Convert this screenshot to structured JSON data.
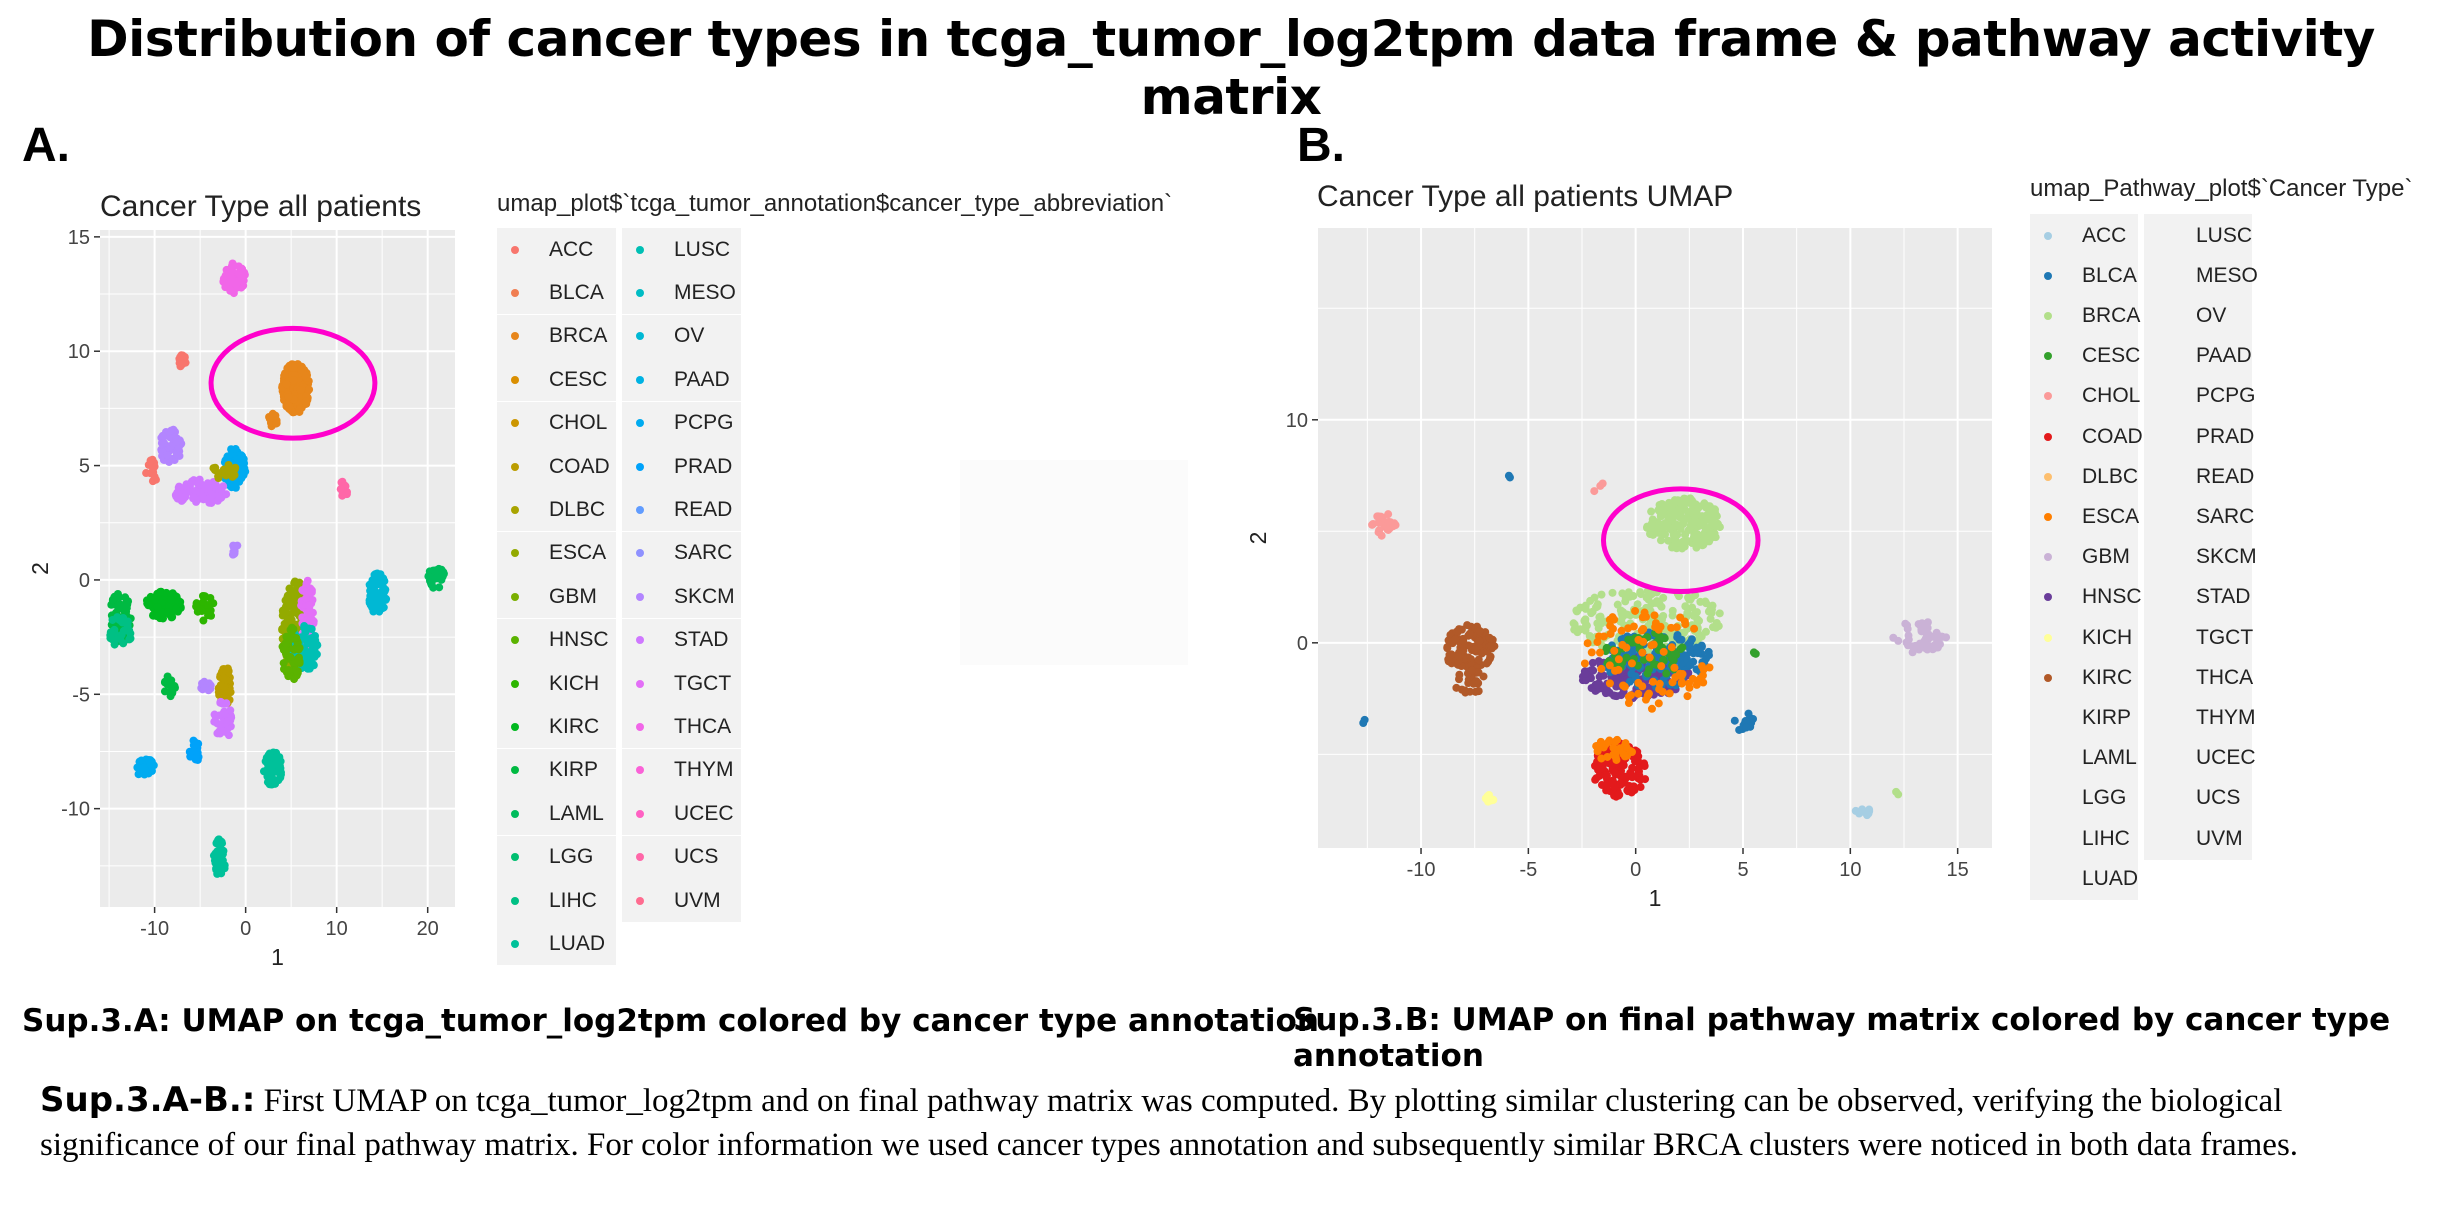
{
  "title": "Distribution of cancer types in tcga_tumor_log2tpm data frame  & pathway activity matrix",
  "panel_a": {
    "letter": "A.",
    "caption": "Sup.3.A: UMAP on tcga_tumor_log2tpm colored by cancer type annotation"
  },
  "panel_b": {
    "letter": "B.",
    "caption": "Sup.3.B: UMAP on final pathway matrix colored by cancer type annotation"
  },
  "footnote": {
    "label": "Sup.3.A-B.:",
    "text": " First UMAP on  tcga_tumor_log2tpm and on final pathway matrix was computed. By plotting similar clustering can be observed, verifying the biological significance of our final pathway matrix. For color information we used cancer types annotation and subsequently similar BRCA clusters were noticed in both data frames."
  },
  "colors": {
    "panel_background": "#ebebeb",
    "grid_line": "#ffffff",
    "highlight_circle": "#ff00cc"
  },
  "chart_data": [
    {
      "type": "scatter",
      "title": "Cancer Type all patients",
      "xlabel": "1",
      "ylabel": "2",
      "xlim": [
        -16,
        23
      ],
      "ylim": [
        -14.3,
        15.3
      ],
      "xticks": [
        -10,
        0,
        10,
        20
      ],
      "yticks": [
        -10,
        -5,
        0,
        5,
        10,
        15
      ],
      "grid": true,
      "legend_title": "umap_plot$`tcga_tumor_annotation$cancer_type_abbreviation`",
      "legend_position": "right",
      "legend_columns": 2,
      "categories": [
        "ACC",
        "BLCA",
        "BRCA",
        "CESC",
        "CHOL",
        "COAD",
        "DLBC",
        "ESCA",
        "GBM",
        "HNSC",
        "KICH",
        "KIRC",
        "KIRP",
        "LAML",
        "LGG",
        "LIHC",
        "LUAD",
        "LUSC",
        "MESO",
        "OV",
        "PAAD",
        "PCPG",
        "PRAD",
        "READ",
        "SARC",
        "SKCM",
        "STAD",
        "TGCT",
        "THCA",
        "THYM",
        "UCEC",
        "UCS",
        "UVM"
      ],
      "category_colors": [
        "#f8766d",
        "#f07e52",
        "#e7861b",
        "#da8f00",
        "#cc9600",
        "#bb9d00",
        "#a9a400",
        "#93aa00",
        "#7aaf00",
        "#5bb300",
        "#2db600",
        "#00b81f",
        "#00ba42",
        "#00bc5c",
        "#00be70",
        "#00c084",
        "#00c19a",
        "#00bfb4",
        "#00bcc4",
        "#00b8d4",
        "#00b2e3",
        "#00abf0",
        "#00a2fa",
        "#619cff",
        "#8f91ff",
        "#b385ff",
        "#cf78ff",
        "#e36ff7",
        "#f166e8",
        "#fa62d7",
        "#ff61c3",
        "#ff67a8",
        "#ff6c90"
      ],
      "clusters": [
        {
          "label": "BRCA",
          "x": [
            4,
            7
          ],
          "y": [
            7.3,
            9.5
          ],
          "n": 300,
          "color": "#e7861b"
        },
        {
          "label": "BRCA",
          "x": [
            2.5,
            3.5
          ],
          "y": [
            6.7,
            7.3
          ],
          "n": 15,
          "color": "#e7861b"
        },
        {
          "label": "ACC",
          "x": [
            -7.5,
            -6.5
          ],
          "y": [
            9.3,
            9.9
          ],
          "n": 12,
          "color": "#f8766d"
        },
        {
          "label": "TGCT",
          "x": [
            -2.5,
            0
          ],
          "y": [
            12.5,
            13.9
          ],
          "n": 60,
          "color": "#f166e8"
        },
        {
          "label": "PCPG",
          "x": [
            -2.5,
            0
          ],
          "y": [
            4,
            5.8
          ],
          "n": 80,
          "color": "#00abf0"
        },
        {
          "label": "SARC",
          "x": [
            -9.5,
            -7
          ],
          "y": [
            5,
            6.6
          ],
          "n": 60,
          "color": "#b385ff"
        },
        {
          "label": "SKCM",
          "x": [
            -8,
            -2
          ],
          "y": [
            3.3,
            4.4
          ],
          "n": 90,
          "color": "#cf78ff"
        },
        {
          "label": "DLBC",
          "x": [
            -4,
            -1
          ],
          "y": [
            4.3,
            5.2
          ],
          "n": 20,
          "color": "#a9a400"
        },
        {
          "label": "ACC",
          "x": [
            -11,
            -9.5
          ],
          "y": [
            4.3,
            5.3
          ],
          "n": 12,
          "color": "#f8766d"
        },
        {
          "label": "UCS",
          "x": [
            10.2,
            11.2
          ],
          "y": [
            3.5,
            4.3
          ],
          "n": 12,
          "color": "#ff67a8"
        },
        {
          "label": "SARC",
          "x": [
            -1.5,
            -0.8
          ],
          "y": [
            1,
            1.7
          ],
          "n": 10,
          "color": "#b385ff"
        },
        {
          "label": "KIRP",
          "x": [
            -15,
            -12.5
          ],
          "y": [
            -2.8,
            -0.5
          ],
          "n": 80,
          "color": "#00ba42"
        },
        {
          "label": "KIRC",
          "x": [
            -11,
            -7
          ],
          "y": [
            -1.7,
            -0.5
          ],
          "n": 110,
          "color": "#00b81f"
        },
        {
          "label": "KICH",
          "x": [
            -5.5,
            -3.5
          ],
          "y": [
            -1.8,
            -0.6
          ],
          "n": 25,
          "color": "#2db600"
        },
        {
          "label": "LIHC",
          "x": [
            -15,
            -12.5
          ],
          "y": [
            -3,
            -1.5
          ],
          "n": 30,
          "color": "#00c084"
        },
        {
          "label": "ESCA",
          "x": [
            4,
            7
          ],
          "y": [
            -4,
            0
          ],
          "n": 200,
          "color": "#93aa00"
        },
        {
          "label": "STAD",
          "x": [
            6,
            7.5
          ],
          "y": [
            -3,
            0
          ],
          "n": 60,
          "color": "#e36ff7"
        },
        {
          "label": "LUSC",
          "x": [
            5,
            8
          ],
          "y": [
            -4,
            -2
          ],
          "n": 90,
          "color": "#00bfb4"
        },
        {
          "label": "HNSC",
          "x": [
            4,
            6
          ],
          "y": [
            -4.5,
            -2
          ],
          "n": 50,
          "color": "#5bb300"
        },
        {
          "label": "OV",
          "x": [
            13.5,
            15.5
          ],
          "y": [
            -1.5,
            0.3
          ],
          "n": 80,
          "color": "#00b8d4"
        },
        {
          "label": "THYM",
          "x": [
            20,
            22
          ],
          "y": [
            -0.4,
            0.6
          ],
          "n": 40,
          "color": "#00bc5c"
        },
        {
          "label": "COAD",
          "x": [
            -3,
            -1.5
          ],
          "y": [
            -5.5,
            -3.8
          ],
          "n": 50,
          "color": "#bb9d00"
        },
        {
          "label": "KIRP",
          "x": [
            -9,
            -7.5
          ],
          "y": [
            -5.1,
            -4.1
          ],
          "n": 15,
          "color": "#00ba42"
        },
        {
          "label": "PAAD",
          "x": [
            -5,
            -3.8
          ],
          "y": [
            -4.9,
            -4.4
          ],
          "n": 10,
          "color": "#b385ff"
        },
        {
          "label": "UCEC",
          "x": [
            -3.5,
            -1.5
          ],
          "y": [
            -7,
            -5.3
          ],
          "n": 40,
          "color": "#cf78ff"
        },
        {
          "label": "LGG",
          "x": [
            -6.2,
            -5
          ],
          "y": [
            -8,
            -7
          ],
          "n": 20,
          "color": "#00a2fa"
        },
        {
          "label": "THCA",
          "x": [
            -12,
            -10
          ],
          "y": [
            -8.7,
            -7.8
          ],
          "n": 30,
          "color": "#00abf0"
        },
        {
          "label": "LUAD",
          "x": [
            2,
            4
          ],
          "y": [
            -9,
            -7.5
          ],
          "n": 50,
          "color": "#00c19a"
        },
        {
          "label": "LAML",
          "x": [
            -3.5,
            -2.2
          ],
          "y": [
            -13,
            -11.3
          ],
          "n": 40,
          "color": "#00c19a"
        }
      ],
      "annotation": "circle around BRCA cluster"
    },
    {
      "type": "scatter",
      "title": "Cancer Type all patients UMAP",
      "xlabel": "1",
      "ylabel": "2",
      "xlim": [
        -14.8,
        16.6
      ],
      "ylim": [
        -9.2,
        18.6
      ],
      "xticks": [
        -10,
        -5,
        0,
        5,
        10,
        15
      ],
      "yticks": [
        0,
        10
      ],
      "grid": true,
      "legend_title": "umap_Pathway_plot$`Cancer Type`",
      "legend_position": "right",
      "legend_columns": 2,
      "categories": [
        "ACC",
        "BLCA",
        "BRCA",
        "CESC",
        "CHOL",
        "COAD",
        "DLBC",
        "ESCA",
        "GBM",
        "HNSC",
        "KICH",
        "KIRC",
        "KIRP",
        "LAML",
        "LGG",
        "LIHC",
        "LUAD",
        "LUSC",
        "MESO",
        "OV",
        "PAAD",
        "PCPG",
        "PRAD",
        "READ",
        "SARC",
        "SKCM",
        "STAD",
        "TGCT",
        "THCA",
        "THYM",
        "UCEC",
        "UCS",
        "UVM"
      ],
      "category_colors": [
        "#a6cee3",
        "#1f78b4",
        "#b2df8a",
        "#33a02c",
        "#fb9a99",
        "#e31a1c",
        "#fdbf6f",
        "#ff7f00",
        "#cab2d6",
        "#6a3d9a",
        "#ffff99",
        "#b15928",
        "",
        "",
        "",
        "",
        "",
        "",
        "",
        "",
        "",
        "",
        "",
        "",
        "",
        "",
        "",
        "",
        "",
        "",
        "",
        "",
        ""
      ],
      "clusters": [
        {
          "label": "BRCA",
          "x": [
            0.5,
            4
          ],
          "y": [
            4.2,
            6.5
          ],
          "n": 200,
          "color": "#b2df8a"
        },
        {
          "label": "KIRC",
          "x": [
            -9,
            -6.5
          ],
          "y": [
            -1.2,
            0.8
          ],
          "n": 120,
          "color": "#b15928"
        },
        {
          "label": "KIRC",
          "x": [
            -8.5,
            -7
          ],
          "y": [
            -2.3,
            -1.2
          ],
          "n": 25,
          "color": "#b15928"
        },
        {
          "label": "CHOL",
          "x": [
            -12.5,
            -11
          ],
          "y": [
            4.8,
            5.8
          ],
          "n": 25,
          "color": "#fb9a99"
        },
        {
          "label": "GBM",
          "x": [
            12,
            14.5
          ],
          "y": [
            -0.5,
            1
          ],
          "n": 50,
          "color": "#cab2d6"
        },
        {
          "label": "COAD",
          "x": [
            -2,
            0.5
          ],
          "y": [
            -7,
            -4.5
          ],
          "n": 120,
          "color": "#e31a1c"
        },
        {
          "label": "ESCA",
          "x": [
            -2,
            0
          ],
          "y": [
            -5.3,
            -4.3
          ],
          "n": 30,
          "color": "#ff7f00"
        },
        {
          "label": "BRCA",
          "x": [
            -3,
            4
          ],
          "y": [
            -0.5,
            2.5
          ],
          "n": 200,
          "color": "#b2df8a"
        },
        {
          "label": "HNSC",
          "x": [
            -2.5,
            2.5
          ],
          "y": [
            -2.5,
            -0.5
          ],
          "n": 180,
          "color": "#6a3d9a"
        },
        {
          "label": "BLCA",
          "x": [
            -1.5,
            3.5
          ],
          "y": [
            -2,
            0.5
          ],
          "n": 150,
          "color": "#1f78b4"
        },
        {
          "label": "CESC",
          "x": [
            -1.5,
            2.5
          ],
          "y": [
            -1.5,
            0.5
          ],
          "n": 60,
          "color": "#33a02c"
        },
        {
          "label": "ESCA",
          "x": [
            -2.5,
            3.5
          ],
          "y": [
            -3,
            1.5
          ],
          "n": 90,
          "color": "#ff7f00"
        },
        {
          "label": "BLCA",
          "x": [
            4.5,
            5.5
          ],
          "y": [
            -4,
            -3
          ],
          "n": 15,
          "color": "#1f78b4"
        },
        {
          "label": "ACC",
          "x": [
            10.2,
            11
          ],
          "y": [
            -7.8,
            -7.4
          ],
          "n": 12,
          "color": "#a6cee3"
        },
        {
          "label": "KICH",
          "x": [
            -7,
            -6.5
          ],
          "y": [
            -7.2,
            -6.8
          ],
          "n": 8,
          "color": "#ffff99"
        },
        {
          "label": "BLCA",
          "x": [
            -12.8,
            -12.6
          ],
          "y": [
            -3.6,
            -3.4
          ],
          "n": 2,
          "color": "#1f78b4"
        },
        {
          "label": "BLCA",
          "x": [
            -6,
            -5.8
          ],
          "y": [
            7.4,
            7.6
          ],
          "n": 2,
          "color": "#1f78b4"
        },
        {
          "label": "CHOL",
          "x": [
            -2,
            -1.5
          ],
          "y": [
            6.7,
            7.3
          ],
          "n": 3,
          "color": "#fb9a99"
        },
        {
          "label": "BRCA",
          "x": [
            12,
            12.4
          ],
          "y": [
            -6.8,
            -6.5
          ],
          "n": 2,
          "color": "#b2df8a"
        },
        {
          "label": "CESC",
          "x": [
            5.3,
            5.7
          ],
          "y": [
            -0.7,
            -0.3
          ],
          "n": 3,
          "color": "#33a02c"
        }
      ],
      "annotation": "circle around BRCA cluster"
    }
  ]
}
